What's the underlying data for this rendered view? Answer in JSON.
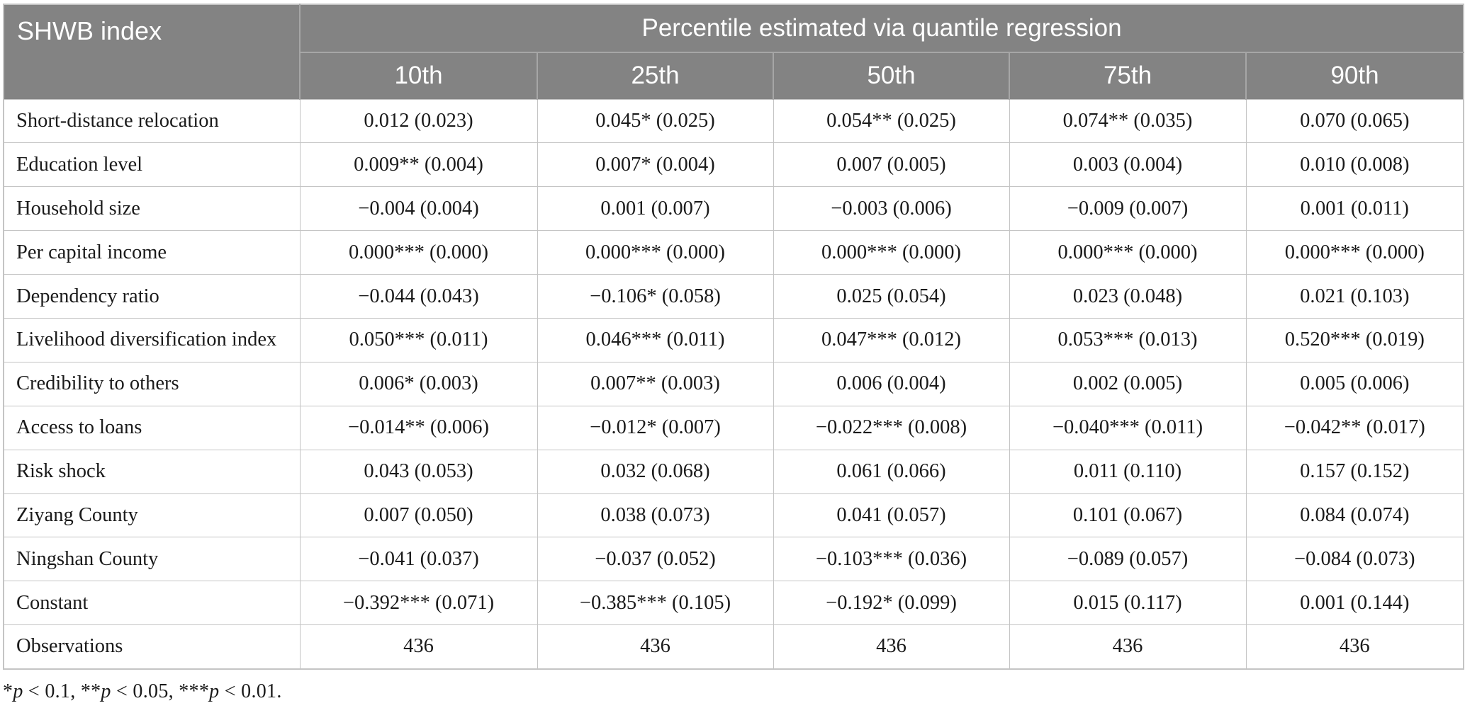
{
  "table": {
    "corner_header": "SHWB index",
    "group_header": "Percentile estimated via quantile regression",
    "column_headers": [
      "10th",
      "25th",
      "50th",
      "75th",
      "90th"
    ],
    "rows": [
      {
        "label": "Short-distance relocation",
        "values": [
          "0.012 (0.023)",
          "0.045* (0.025)",
          "0.054** (0.025)",
          "0.074** (0.035)",
          "0.070 (0.065)"
        ]
      },
      {
        "label": "Education level",
        "values": [
          "0.009** (0.004)",
          "0.007* (0.004)",
          "0.007 (0.005)",
          "0.003 (0.004)",
          "0.010 (0.008)"
        ]
      },
      {
        "label": "Household size",
        "values": [
          "−0.004 (0.004)",
          "0.001 (0.007)",
          "−0.003 (0.006)",
          "−0.009 (0.007)",
          "0.001 (0.011)"
        ]
      },
      {
        "label": "Per capital income",
        "values": [
          "0.000*** (0.000)",
          "0.000*** (0.000)",
          "0.000*** (0.000)",
          "0.000*** (0.000)",
          "0.000*** (0.000)"
        ]
      },
      {
        "label": "Dependency ratio",
        "values": [
          "−0.044 (0.043)",
          "−0.106* (0.058)",
          "0.025 (0.054)",
          "0.023 (0.048)",
          "0.021 (0.103)"
        ]
      },
      {
        "label": "Livelihood diversification index",
        "values": [
          "0.050*** (0.011)",
          "0.046*** (0.011)",
          "0.047*** (0.012)",
          "0.053*** (0.013)",
          "0.520*** (0.019)"
        ]
      },
      {
        "label": "Credibility to others",
        "values": [
          "0.006* (0.003)",
          "0.007** (0.003)",
          "0.006 (0.004)",
          "0.002 (0.005)",
          "0.005 (0.006)"
        ]
      },
      {
        "label": "Access to loans",
        "values": [
          "−0.014** (0.006)",
          "−0.012* (0.007)",
          "−0.022*** (0.008)",
          "−0.040*** (0.011)",
          "−0.042** (0.017)"
        ]
      },
      {
        "label": "Risk shock",
        "values": [
          "0.043 (0.053)",
          "0.032 (0.068)",
          "0.061 (0.066)",
          "0.011 (0.110)",
          "0.157 (0.152)"
        ]
      },
      {
        "label": "Ziyang County",
        "values": [
          "0.007 (0.050)",
          "0.038 (0.073)",
          "0.041 (0.057)",
          "0.101 (0.067)",
          "0.084 (0.074)"
        ]
      },
      {
        "label": "Ningshan County",
        "values": [
          "−0.041 (0.037)",
          "−0.037 (0.052)",
          "−0.103*** (0.036)",
          "−0.089 (0.057)",
          "−0.084 (0.073)"
        ]
      },
      {
        "label": "Constant",
        "values": [
          "−0.392*** (0.071)",
          "−0.385*** (0.105)",
          "−0.192* (0.099)",
          "0.015 (0.117)",
          "0.001 (0.144)"
        ]
      },
      {
        "label": "Observations",
        "values": [
          "436",
          "436",
          "436",
          "436",
          "436"
        ]
      }
    ]
  },
  "footnote": "*p < 0.1, **p < 0.05, ***p < 0.01.",
  "colors": {
    "header_bg": "#838383",
    "header_text": "#ffffff",
    "header_divider": "#a6a6a6",
    "grid_line": "#c4c4c4",
    "body_text": "#1a1a1a"
  }
}
